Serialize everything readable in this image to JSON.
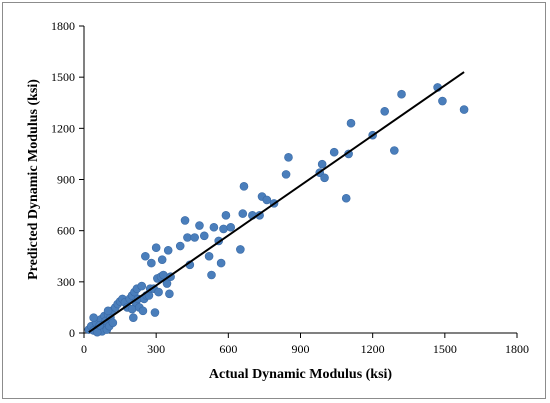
{
  "chart_data": {
    "type": "scatter",
    "title": "",
    "xlabel": "Actual Dynamic Modulus (ksi)",
    "ylabel": "Predicted Dynamic Modulus (ksi)",
    "xlim": [
      0,
      1800
    ],
    "ylim": [
      0,
      1800
    ],
    "xticks": [
      0,
      300,
      600,
      900,
      1200,
      1500,
      1800
    ],
    "yticks": [
      0,
      300,
      600,
      900,
      1200,
      1500,
      1800
    ],
    "grid": false,
    "legend": "none",
    "marker_color": "#4a7ebb",
    "line_color": "#000000",
    "series": [
      {
        "points": [
          [
            20,
            20
          ],
          [
            30,
            40
          ],
          [
            40,
            15
          ],
          [
            50,
            60
          ],
          [
            60,
            30
          ],
          [
            70,
            80
          ],
          [
            75,
            10
          ],
          [
            80,
            50
          ],
          [
            85,
            100
          ],
          [
            90,
            70
          ],
          [
            95,
            20
          ],
          [
            100,
            110
          ],
          [
            105,
            40
          ],
          [
            110,
            90
          ],
          [
            115,
            130
          ],
          [
            120,
            60
          ],
          [
            40,
            90
          ],
          [
            55,
            5
          ],
          [
            65,
            45
          ],
          [
            100,
            130
          ],
          [
            130,
            150
          ],
          [
            140,
            170
          ],
          [
            150,
            185
          ],
          [
            160,
            200
          ],
          [
            170,
            180
          ],
          [
            180,
            150
          ],
          [
            190,
            200
          ],
          [
            200,
            220
          ],
          [
            200,
            140
          ],
          [
            205,
            90
          ],
          [
            210,
            240
          ],
          [
            215,
            180
          ],
          [
            220,
            260
          ],
          [
            225,
            200
          ],
          [
            230,
            150
          ],
          [
            240,
            275
          ],
          [
            245,
            130
          ],
          [
            250,
            200
          ],
          [
            255,
            450
          ],
          [
            260,
            220
          ],
          [
            270,
            220
          ],
          [
            275,
            260
          ],
          [
            280,
            410
          ],
          [
            290,
            260
          ],
          [
            295,
            120
          ],
          [
            300,
            500
          ],
          [
            305,
            320
          ],
          [
            310,
            240
          ],
          [
            320,
            330
          ],
          [
            325,
            430
          ],
          [
            330,
            340
          ],
          [
            345,
            290
          ],
          [
            350,
            485
          ],
          [
            355,
            230
          ],
          [
            360,
            330
          ],
          [
            400,
            510
          ],
          [
            420,
            660
          ],
          [
            430,
            560
          ],
          [
            440,
            400
          ],
          [
            460,
            560
          ],
          [
            480,
            630
          ],
          [
            500,
            570
          ],
          [
            520,
            450
          ],
          [
            530,
            340
          ],
          [
            540,
            620
          ],
          [
            560,
            540
          ],
          [
            570,
            410
          ],
          [
            580,
            610
          ],
          [
            590,
            690
          ],
          [
            610,
            620
          ],
          [
            650,
            490
          ],
          [
            660,
            700
          ],
          [
            665,
            860
          ],
          [
            700,
            690
          ],
          [
            730,
            690
          ],
          [
            740,
            800
          ],
          [
            760,
            780
          ],
          [
            790,
            760
          ],
          [
            840,
            930
          ],
          [
            850,
            1030
          ],
          [
            980,
            940
          ],
          [
            990,
            990
          ],
          [
            1000,
            910
          ],
          [
            1040,
            1060
          ],
          [
            1090,
            790
          ],
          [
            1100,
            1050
          ],
          [
            1110,
            1230
          ],
          [
            1200,
            1160
          ],
          [
            1250,
            1300
          ],
          [
            1290,
            1070
          ],
          [
            1320,
            1400
          ],
          [
            1470,
            1440
          ],
          [
            1490,
            1360
          ],
          [
            1580,
            1310
          ]
        ]
      }
    ],
    "fit_line": {
      "x": [
        20,
        1580
      ],
      "y": [
        5,
        1530
      ]
    }
  }
}
